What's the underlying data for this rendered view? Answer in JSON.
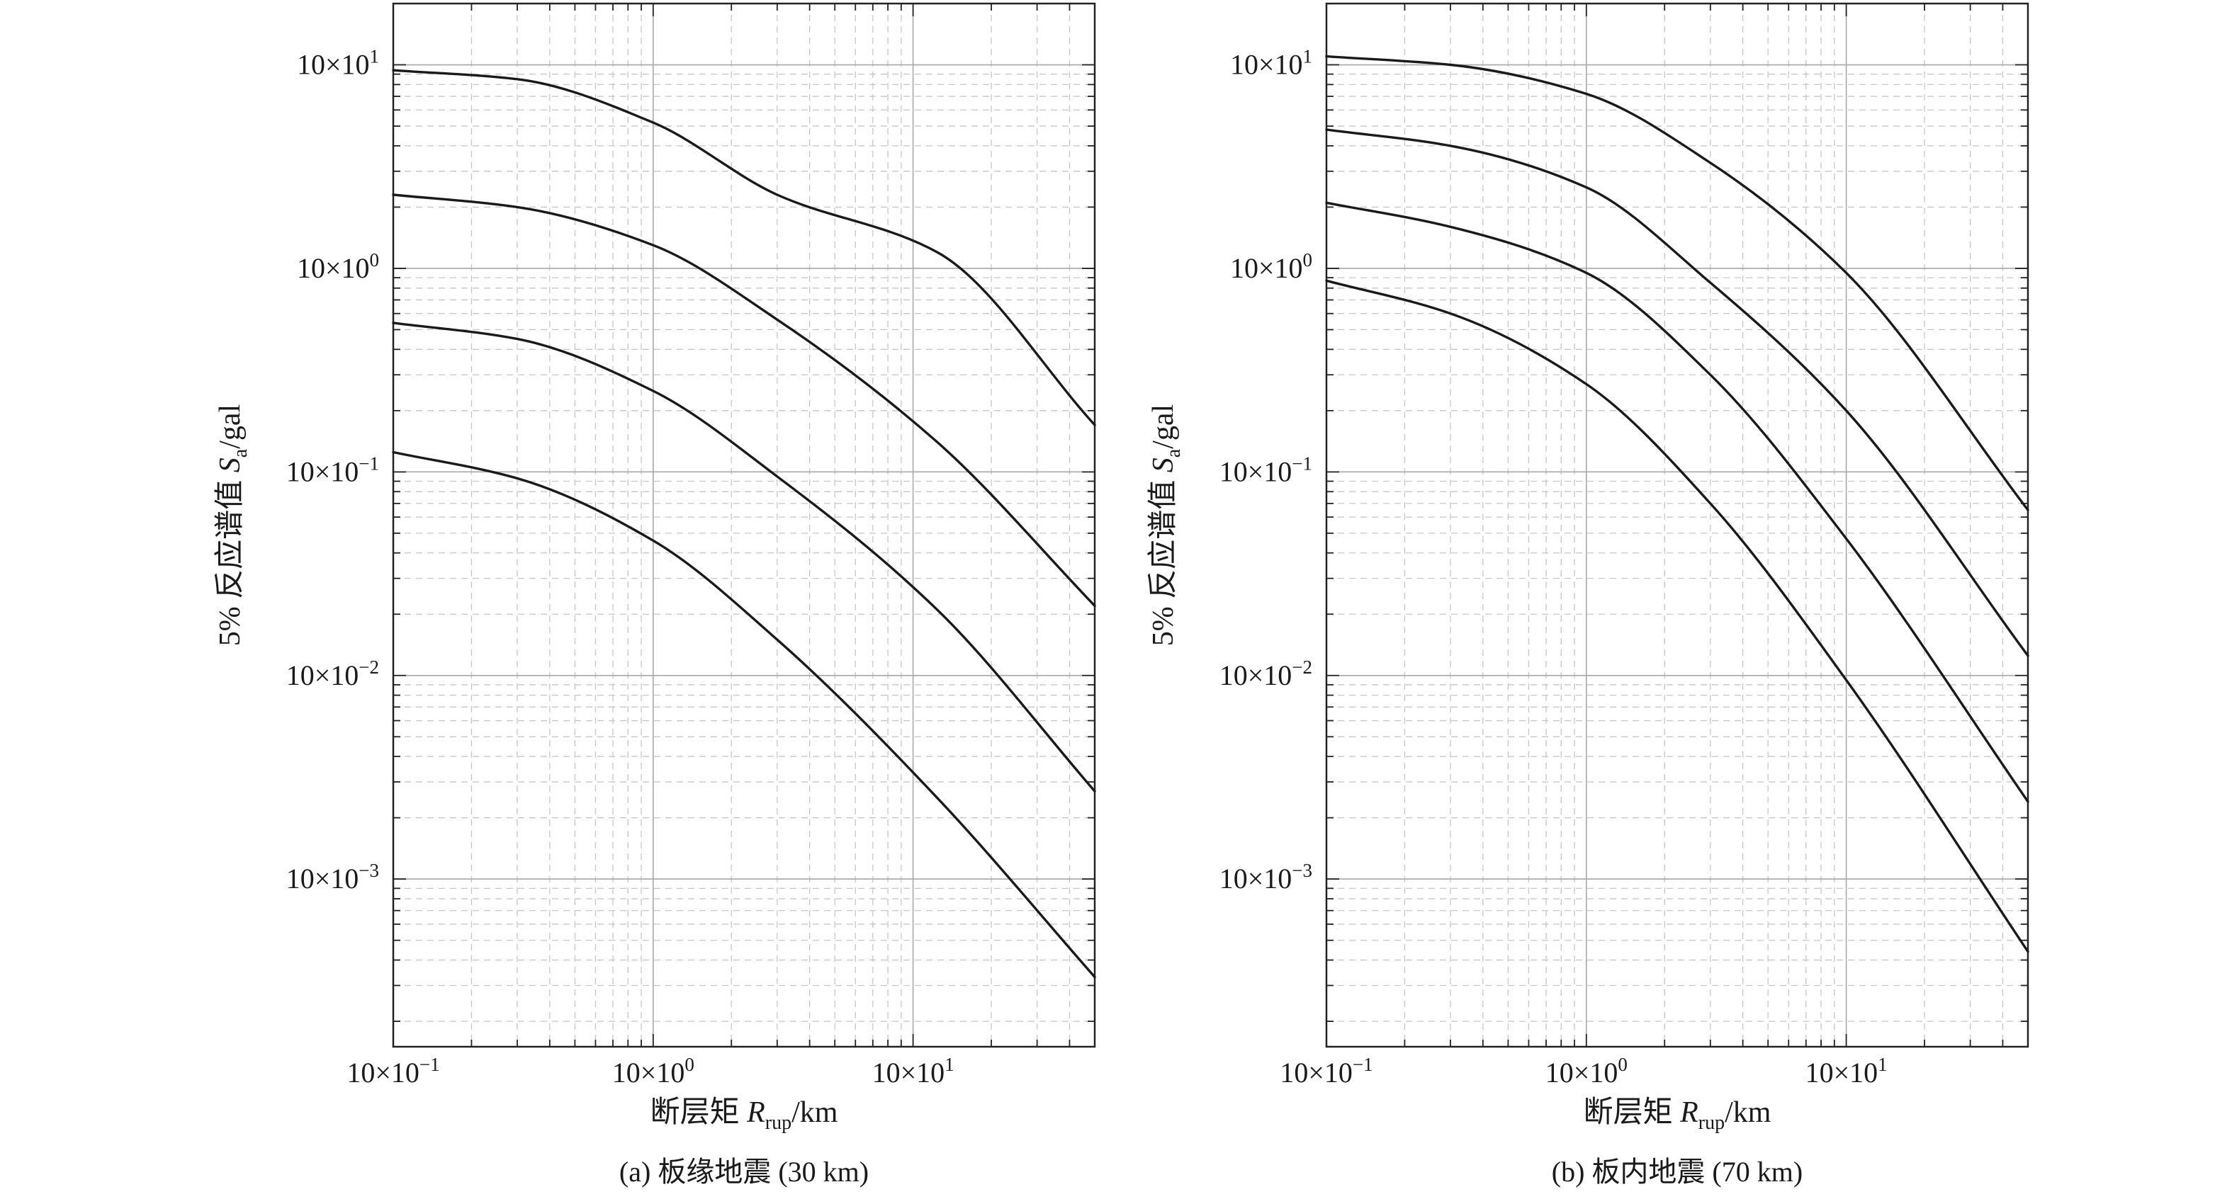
{
  "chart_data": [
    {
      "type": "line",
      "caption": "(a) 板缘地震 (30 km)",
      "xlabel": {
        "prefix": "断层矩 ",
        "symbol": "R",
        "subscript": "rup",
        "unit": "/km"
      },
      "ylabel": {
        "prefix": "5% 反应谱值 ",
        "symbol": "S",
        "subscript": "a",
        "unit": "/gal"
      },
      "x_scale": "log",
      "y_scale": "log",
      "xlim": [
        0.1,
        50
      ],
      "ylim": [
        0.00015,
        20
      ],
      "grid": true,
      "x_ticks": [
        {
          "value": 0.1,
          "mantissa": "10×10",
          "exponent": "−1"
        },
        {
          "value": 1,
          "mantissa": "10×10",
          "exponent": "0"
        },
        {
          "value": 10,
          "mantissa": "10×10",
          "exponent": "1"
        }
      ],
      "y_ticks": [
        {
          "value": 10,
          "mantissa": "10×10",
          "exponent": "1"
        },
        {
          "value": 1,
          "mantissa": "10×10",
          "exponent": "0"
        },
        {
          "value": 0.1,
          "mantissa": "10×10",
          "exponent": "−1"
        },
        {
          "value": 0.01,
          "mantissa": "10×10",
          "exponent": "−2"
        },
        {
          "value": 0.001,
          "mantissa": "10×10",
          "exponent": "−3"
        }
      ],
      "series": [
        {
          "x": [
            0.1,
            0.3,
            1,
            3,
            12.4,
            50
          ],
          "y": [
            9.4,
            8.5,
            5.2,
            2.3,
            1.2,
            0.17
          ]
        },
        {
          "x": [
            0.1,
            0.3,
            1,
            3,
            12.4,
            50
          ],
          "y": [
            2.3,
            2.0,
            1.3,
            0.56,
            0.14,
            0.022
          ]
        },
        {
          "x": [
            0.1,
            0.3,
            1,
            3,
            12.4,
            50
          ],
          "y": [
            0.54,
            0.45,
            0.25,
            0.095,
            0.021,
            0.0027
          ]
        },
        {
          "x": [
            0.1,
            0.3,
            1,
            3,
            12.4,
            50
          ],
          "y": [
            0.125,
            0.093,
            0.046,
            0.015,
            0.0025,
            0.00033
          ]
        }
      ]
    },
    {
      "type": "line",
      "caption": "(b) 板内地震 (70 km)",
      "xlabel": {
        "prefix": "断层矩 ",
        "symbol": "R",
        "subscript": "rup",
        "unit": "/km"
      },
      "ylabel": {
        "prefix": "5% 反应谱值 ",
        "symbol": "S",
        "subscript": "a",
        "unit": "/gal"
      },
      "x_scale": "log",
      "y_scale": "log",
      "xlim": [
        0.1,
        50
      ],
      "ylim": [
        0.00015,
        20
      ],
      "grid": true,
      "x_ticks": [
        {
          "value": 0.1,
          "mantissa": "10×10",
          "exponent": "−1"
        },
        {
          "value": 1,
          "mantissa": "10×10",
          "exponent": "0"
        },
        {
          "value": 10,
          "mantissa": "10×10",
          "exponent": "1"
        }
      ],
      "y_ticks": [
        {
          "value": 10,
          "mantissa": "10×10",
          "exponent": "1"
        },
        {
          "value": 1,
          "mantissa": "10×10",
          "exponent": "0"
        },
        {
          "value": 0.1,
          "mantissa": "10×10",
          "exponent": "−1"
        },
        {
          "value": 0.01,
          "mantissa": "10×10",
          "exponent": "−2"
        },
        {
          "value": 0.001,
          "mantissa": "10×10",
          "exponent": "−3"
        }
      ],
      "series": [
        {
          "x": [
            0.1,
            0.3,
            1,
            3,
            10,
            50
          ],
          "y": [
            11.0,
            10.0,
            7.2,
            3.3,
            0.95,
            0.065
          ]
        },
        {
          "x": [
            0.1,
            0.3,
            1,
            3,
            10,
            50
          ],
          "y": [
            4.8,
            4.0,
            2.5,
            0.85,
            0.2,
            0.0125
          ]
        },
        {
          "x": [
            0.1,
            0.3,
            1,
            3,
            10,
            50
          ],
          "y": [
            2.1,
            1.6,
            0.95,
            0.3,
            0.047,
            0.0024
          ]
        },
        {
          "x": [
            0.1,
            0.3,
            1,
            3,
            10,
            50
          ],
          "y": [
            0.87,
            0.6,
            0.27,
            0.07,
            0.0095,
            0.00044
          ]
        }
      ]
    }
  ]
}
